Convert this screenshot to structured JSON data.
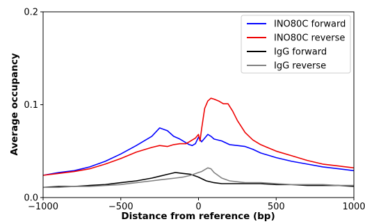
{
  "chart_data": {
    "type": "line",
    "title": "",
    "xlabel": "Distance from reference (bp)",
    "ylabel": "Average occupancy",
    "xlim": [
      -1000,
      1000
    ],
    "ylim": [
      0,
      0.2
    ],
    "xticks": [
      -1000,
      -500,
      0,
      500,
      1000
    ],
    "xtick_labels": [
      "−1000",
      "−500",
      "0",
      "500",
      "1000"
    ],
    "yticks": [
      0,
      0.1,
      0.2
    ],
    "ytick_labels": [
      "0.0",
      "0.1",
      "0.2"
    ],
    "grid": false,
    "legend_position": "top-right",
    "series": [
      {
        "name": "INO80C forward",
        "color": "#0000ff",
        "x": [
          -1000,
          -900,
          -800,
          -700,
          -600,
          -500,
          -400,
          -300,
          -250,
          -200,
          -160,
          -120,
          -80,
          -60,
          -40,
          -20,
          0,
          20,
          40,
          60,
          80,
          100,
          150,
          200,
          250,
          300,
          350,
          400,
          500,
          600,
          700,
          800,
          900,
          1000
        ],
        "y": [
          0.024,
          0.027,
          0.029,
          0.033,
          0.039,
          0.047,
          0.056,
          0.066,
          0.075,
          0.072,
          0.066,
          0.063,
          0.059,
          0.057,
          0.056,
          0.058,
          0.065,
          0.06,
          0.064,
          0.068,
          0.066,
          0.063,
          0.061,
          0.057,
          0.056,
          0.055,
          0.052,
          0.048,
          0.043,
          0.039,
          0.036,
          0.033,
          0.031,
          0.029
        ]
      },
      {
        "name": "INO80C reverse",
        "color": "#ee0000",
        "x": [
          -1000,
          -900,
          -800,
          -700,
          -600,
          -500,
          -400,
          -300,
          -250,
          -200,
          -160,
          -120,
          -80,
          -60,
          -40,
          -20,
          0,
          10,
          20,
          40,
          60,
          80,
          100,
          130,
          160,
          190,
          220,
          250,
          300,
          350,
          400,
          500,
          600,
          700,
          800,
          900,
          1000
        ],
        "y": [
          0.024,
          0.026,
          0.028,
          0.031,
          0.036,
          0.042,
          0.049,
          0.054,
          0.056,
          0.055,
          0.057,
          0.058,
          0.058,
          0.06,
          0.062,
          0.064,
          0.068,
          0.061,
          0.074,
          0.096,
          0.104,
          0.107,
          0.106,
          0.104,
          0.101,
          0.101,
          0.093,
          0.083,
          0.07,
          0.062,
          0.057,
          0.05,
          0.045,
          0.04,
          0.036,
          0.034,
          0.032
        ]
      },
      {
        "name": "IgG forward",
        "color": "#000000",
        "x": [
          -1000,
          -900,
          -800,
          -700,
          -600,
          -500,
          -400,
          -300,
          -250,
          -200,
          -150,
          -100,
          -50,
          0,
          50,
          100,
          150,
          200,
          300,
          400,
          500,
          600,
          700,
          800,
          900,
          1000
        ],
        "y": [
          0.011,
          0.012,
          0.012,
          0.013,
          0.014,
          0.016,
          0.018,
          0.021,
          0.023,
          0.025,
          0.027,
          0.026,
          0.025,
          0.022,
          0.018,
          0.016,
          0.015,
          0.015,
          0.015,
          0.015,
          0.014,
          0.014,
          0.013,
          0.013,
          0.013,
          0.012
        ]
      },
      {
        "name": "IgG reverse",
        "color": "#808080",
        "x": [
          -1000,
          -900,
          -800,
          -700,
          -600,
          -500,
          -400,
          -300,
          -250,
          -200,
          -150,
          -100,
          -50,
          0,
          20,
          40,
          60,
          80,
          100,
          150,
          200,
          300,
          400,
          500,
          600,
          700,
          800,
          900,
          1000
        ],
        "y": [
          0.011,
          0.011,
          0.012,
          0.012,
          0.013,
          0.014,
          0.016,
          0.018,
          0.019,
          0.02,
          0.021,
          0.022,
          0.024,
          0.027,
          0.028,
          0.03,
          0.032,
          0.031,
          0.027,
          0.021,
          0.018,
          0.016,
          0.016,
          0.015,
          0.014,
          0.014,
          0.014,
          0.013,
          0.013
        ]
      }
    ]
  }
}
